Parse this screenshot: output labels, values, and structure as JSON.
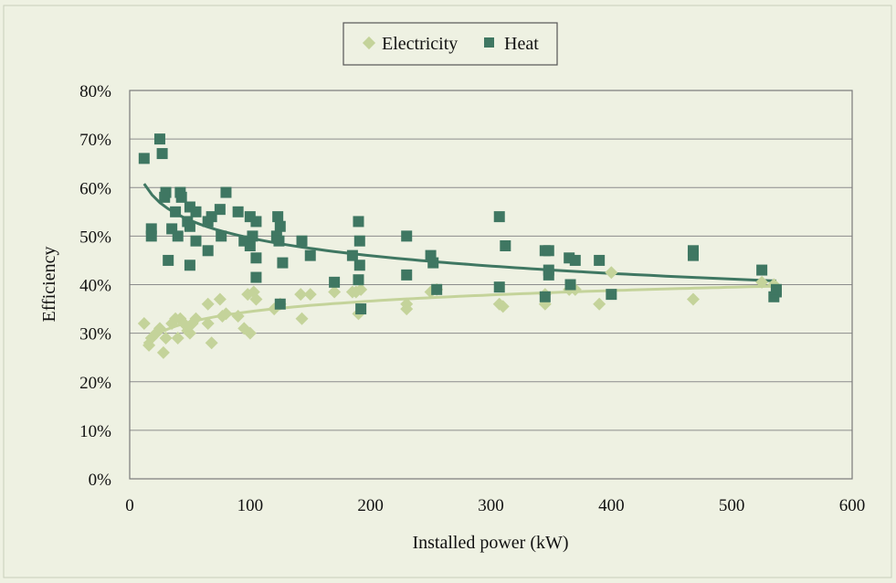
{
  "chart_data": {
    "type": "scatter",
    "title": "",
    "xlabel": "Installed power (kW)",
    "ylabel": "Efficiency",
    "xlim": [
      0,
      600
    ],
    "ylim": [
      0,
      0.8
    ],
    "x_ticks": [
      "0",
      "100",
      "200",
      "300",
      "400",
      "500",
      "600"
    ],
    "y_ticks": [
      "0%",
      "10%",
      "20%",
      "30%",
      "40%",
      "50%",
      "60%",
      "70%",
      "80%"
    ],
    "grid": "horizontal",
    "legend_position": "top",
    "series": [
      {
        "name": "Electricity",
        "marker": "diamond",
        "color": "#c4d39a",
        "trendline": "logarithmic",
        "trend_color": "#c4d39a",
        "points": [
          [
            12,
            0.32
          ],
          [
            16,
            0.275
          ],
          [
            18,
            0.29
          ],
          [
            22,
            0.3
          ],
          [
            25,
            0.31
          ],
          [
            28,
            0.26
          ],
          [
            30,
            0.29
          ],
          [
            35,
            0.32
          ],
          [
            38,
            0.33
          ],
          [
            40,
            0.29
          ],
          [
            42,
            0.33
          ],
          [
            45,
            0.32
          ],
          [
            48,
            0.305
          ],
          [
            50,
            0.3
          ],
          [
            52,
            0.32
          ],
          [
            55,
            0.33
          ],
          [
            65,
            0.36
          ],
          [
            65,
            0.32
          ],
          [
            68,
            0.28
          ],
          [
            75,
            0.37
          ],
          [
            77,
            0.335
          ],
          [
            80,
            0.34
          ],
          [
            90,
            0.335
          ],
          [
            95,
            0.31
          ],
          [
            98,
            0.38
          ],
          [
            100,
            0.3
          ],
          [
            103,
            0.385
          ],
          [
            105,
            0.37
          ],
          [
            120,
            0.35
          ],
          [
            125,
            0.36
          ],
          [
            142,
            0.38
          ],
          [
            143,
            0.33
          ],
          [
            150,
            0.38
          ],
          [
            170,
            0.385
          ],
          [
            185,
            0.385
          ],
          [
            188,
            0.385
          ],
          [
            190,
            0.34
          ],
          [
            192,
            0.39
          ],
          [
            230,
            0.36
          ],
          [
            230,
            0.35
          ],
          [
            250,
            0.385
          ],
          [
            255,
            0.39
          ],
          [
            307,
            0.36
          ],
          [
            310,
            0.355
          ],
          [
            345,
            0.38
          ],
          [
            345,
            0.36
          ],
          [
            365,
            0.39
          ],
          [
            370,
            0.39
          ],
          [
            390,
            0.36
          ],
          [
            400,
            0.425
          ],
          [
            468,
            0.37
          ],
          [
            525,
            0.405
          ],
          [
            535,
            0.4
          ]
        ]
      },
      {
        "name": "Heat",
        "marker": "square",
        "color": "#3f7762",
        "trendline": "logarithmic",
        "trend_color": "#3f7762",
        "points": [
          [
            12,
            0.66
          ],
          [
            18,
            0.515
          ],
          [
            18,
            0.5
          ],
          [
            25,
            0.7
          ],
          [
            27,
            0.67
          ],
          [
            29,
            0.58
          ],
          [
            30,
            0.59
          ],
          [
            32,
            0.45
          ],
          [
            35,
            0.515
          ],
          [
            38,
            0.55
          ],
          [
            40,
            0.5
          ],
          [
            42,
            0.59
          ],
          [
            43,
            0.58
          ],
          [
            48,
            0.53
          ],
          [
            50,
            0.44
          ],
          [
            50,
            0.52
          ],
          [
            50,
            0.56
          ],
          [
            55,
            0.49
          ],
          [
            55,
            0.55
          ],
          [
            65,
            0.47
          ],
          [
            65,
            0.53
          ],
          [
            68,
            0.54
          ],
          [
            75,
            0.555
          ],
          [
            76,
            0.5
          ],
          [
            80,
            0.59
          ],
          [
            90,
            0.55
          ],
          [
            95,
            0.49
          ],
          [
            100,
            0.48
          ],
          [
            100,
            0.54
          ],
          [
            102,
            0.5
          ],
          [
            105,
            0.455
          ],
          [
            105,
            0.415
          ],
          [
            105,
            0.53
          ],
          [
            122,
            0.5
          ],
          [
            123,
            0.54
          ],
          [
            124,
            0.49
          ],
          [
            125,
            0.52
          ],
          [
            125,
            0.36
          ],
          [
            127,
            0.445
          ],
          [
            143,
            0.49
          ],
          [
            150,
            0.46
          ],
          [
            170,
            0.405
          ],
          [
            185,
            0.46
          ],
          [
            190,
            0.53
          ],
          [
            190,
            0.41
          ],
          [
            191,
            0.44
          ],
          [
            191,
            0.49
          ],
          [
            192,
            0.35
          ],
          [
            230,
            0.5
          ],
          [
            230,
            0.42
          ],
          [
            250,
            0.46
          ],
          [
            252,
            0.445
          ],
          [
            255,
            0.39
          ],
          [
            307,
            0.54
          ],
          [
            307,
            0.395
          ],
          [
            312,
            0.48
          ],
          [
            345,
            0.47
          ],
          [
            345,
            0.375
          ],
          [
            348,
            0.47
          ],
          [
            348,
            0.43
          ],
          [
            348,
            0.42
          ],
          [
            365,
            0.455
          ],
          [
            366,
            0.4
          ],
          [
            370,
            0.45
          ],
          [
            390,
            0.45
          ],
          [
            400,
            0.38
          ],
          [
            468,
            0.47
          ],
          [
            468,
            0.46
          ],
          [
            525,
            0.43
          ],
          [
            535,
            0.375
          ],
          [
            537,
            0.385
          ],
          [
            537,
            0.39
          ]
        ]
      }
    ]
  }
}
